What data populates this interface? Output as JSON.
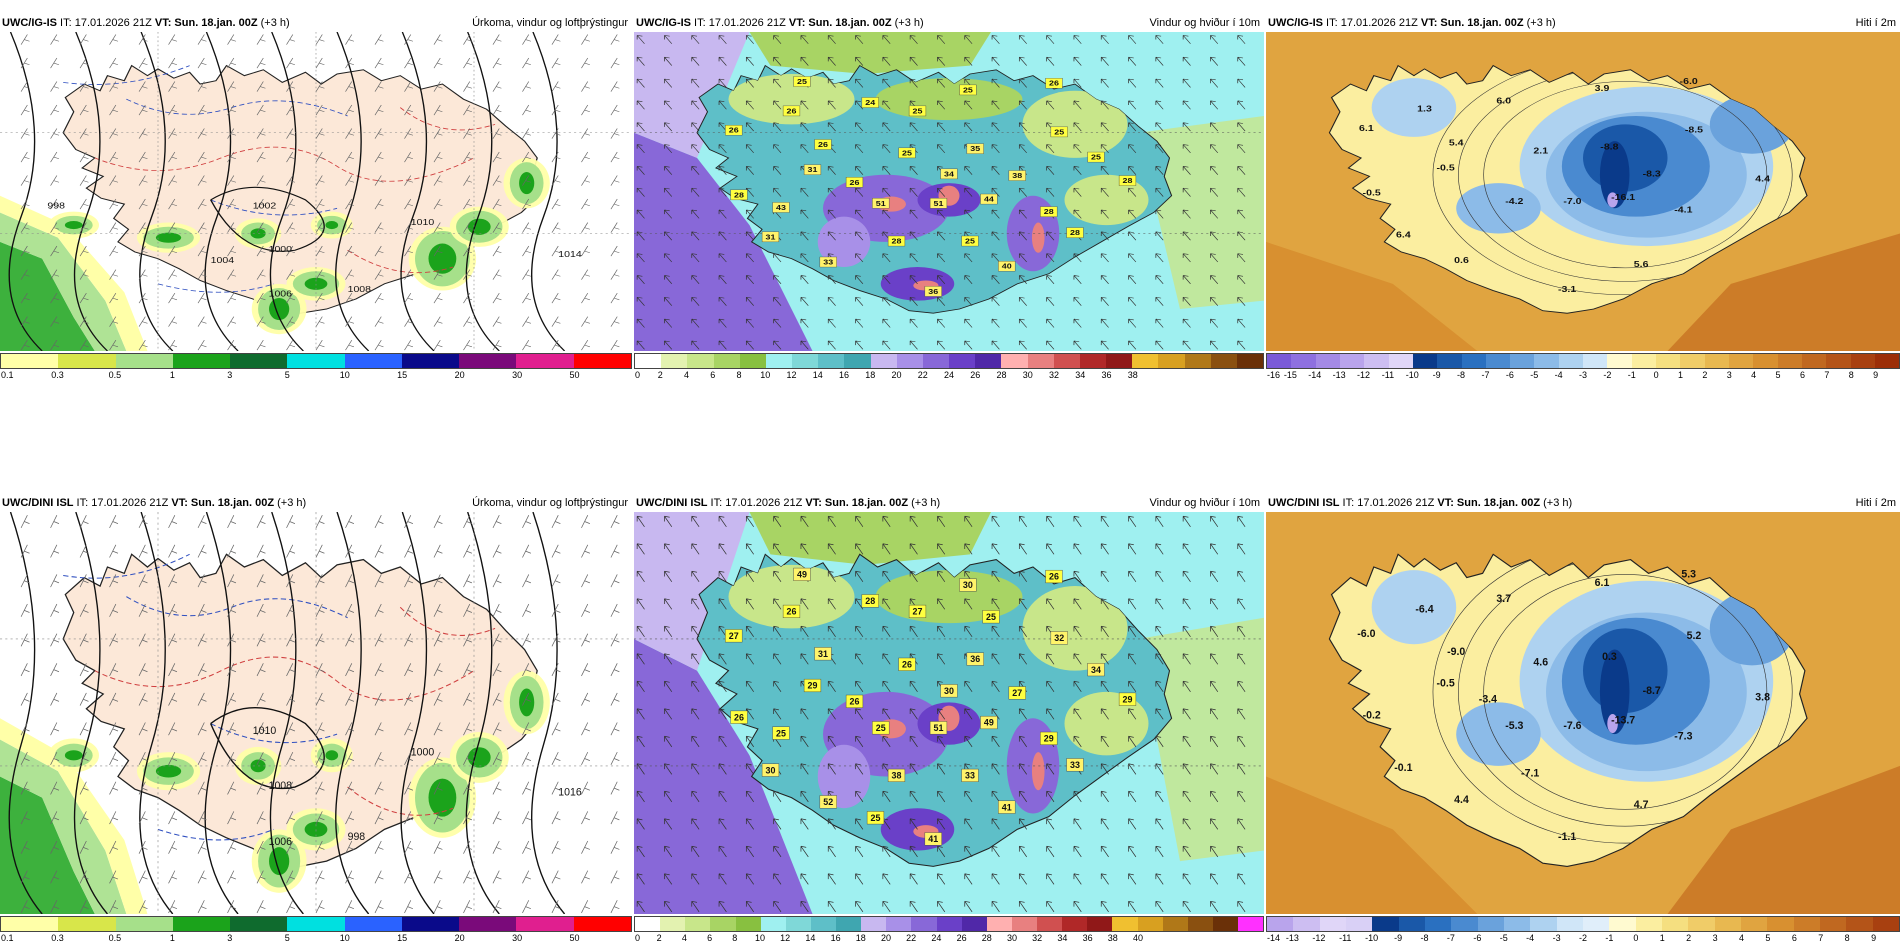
{
  "panels": [
    {
      "id": "p1",
      "model": "UWC/IG-IS",
      "it_label": "IT:",
      "it_value": "17.01.2026 21Z",
      "vt_label": "VT:",
      "vt_value": "Sun. 18.jan. 00Z",
      "lead": "(+3 h)",
      "title": "Úrkoma, vindur og loftþrýstingur",
      "kind": "precip",
      "values": [
        "1002",
        "1000",
        "1006",
        "1010",
        "1008",
        "1014",
        "998",
        "1004"
      ],
      "legend": {
        "colors": [
          "#ffffa8",
          "#d8e64a",
          "#a6e08a",
          "#1ba31b",
          "#0f6b2e",
          "#00e0e0",
          "#2a62ff",
          "#0a0a8a",
          "#7a0a7a",
          "#e01f8f",
          "#ff0000"
        ],
        "ticks": [
          "0.1",
          "0.3",
          "0.5",
          "1",
          "3",
          "5",
          "10",
          "15",
          "20",
          "30",
          "50"
        ]
      }
    },
    {
      "id": "p2",
      "model": "UWC/IG-IS",
      "it_label": "IT:",
      "it_value": "17.01.2026 21Z",
      "vt_label": "VT:",
      "vt_value": "Sun. 18.jan. 00Z",
      "lead": "(+3 h)",
      "title": "Vindur og hviður í 10m",
      "kind": "wind",
      "values": [
        "25",
        "26",
        "26",
        "24",
        "26",
        "26",
        "25",
        "35",
        "25",
        "31",
        "38",
        "28",
        "28",
        "51",
        "51",
        "44",
        "28",
        "31",
        "33",
        "40",
        "36",
        "28",
        "26",
        "34",
        "25",
        "43",
        "25",
        "25",
        "28",
        "25"
      ],
      "legend": {
        "colors": [
          "#ffffff",
          "#e3f2b0",
          "#c8e68a",
          "#a8d464",
          "#88c040",
          "#9ff0f0",
          "#7fd8d8",
          "#5ebfc8",
          "#3fa6b0",
          "#c8b8f0",
          "#a890e8",
          "#8868d8",
          "#6a40c8",
          "#5028a8",
          "#ffb0b0",
          "#e88080",
          "#d05050",
          "#b02828",
          "#901818",
          "#f0c030",
          "#d8a020",
          "#b07818",
          "#8a5010",
          "#6a3008"
        ],
        "ticks": [
          "0",
          "2",
          "4",
          "6",
          "8",
          "10",
          "12",
          "14",
          "16",
          "18",
          "20",
          "22",
          "24",
          "26",
          "28",
          "30",
          "32",
          "34",
          "36",
          "38"
        ]
      }
    },
    {
      "id": "p3",
      "model": "UWC/IG-IS",
      "it_label": "IT:",
      "it_value": "17.01.2026 21Z",
      "vt_label": "VT:",
      "vt_value": "Sun. 18.jan. 00Z",
      "lead": "(+3 h)",
      "title": "Hiti í 2m",
      "kind": "temp",
      "values": [
        "3.9",
        "-6.0",
        "1.3",
        "6.0",
        "6.1",
        "5.4",
        "2.1",
        "-8.8",
        "-8.5",
        "-0.5",
        "-8.3",
        "4.4",
        "-0.5",
        "-4.2",
        "-7.0",
        "-16.1",
        "-4.1",
        "6.4",
        "0.6",
        "5.6",
        "-3.1"
      ],
      "legend": {
        "colors": [
          "#7a5ad8",
          "#8e70e0",
          "#a48ae6",
          "#b9a4ec",
          "#cdbef2",
          "#e0d6f8",
          "#0a3a8a",
          "#1a58a8",
          "#2a70c0",
          "#4a8ad0",
          "#6aa2dc",
          "#8cbbe8",
          "#aed2f0",
          "#d0e6f8",
          "#fffad0",
          "#fbeea0",
          "#f5df80",
          "#f0cc68",
          "#e8b850",
          "#e0a440",
          "#d89030",
          "#cc7c28",
          "#c06820",
          "#b45418",
          "#a84010",
          "#9c2e08"
        ],
        "ticks": [
          "-16",
          "-15",
          "-14",
          "-13",
          "-12",
          "-11",
          "-10",
          "-9",
          "-8",
          "-7",
          "-6",
          "-5",
          "-4",
          "-3",
          "-2",
          "-1",
          "0",
          "1",
          "2",
          "3",
          "4",
          "5",
          "6",
          "7",
          "8",
          "9"
        ]
      }
    },
    {
      "id": "p4",
      "model": "UWC/DINI ISL",
      "it_label": "IT:",
      "it_value": "17.01.2026 21Z",
      "vt_label": "VT:",
      "vt_value": "Sun. 18.jan. 00Z",
      "lead": "(+3 h)",
      "title": "Úrkoma, vindur og loftþrýstingur",
      "kind": "precip",
      "values": [
        "1010",
        "1008",
        "1006",
        "1000",
        "998",
        "1016"
      ],
      "legend": {
        "colors": [
          "#ffffa8",
          "#d8e64a",
          "#a6e08a",
          "#1ba31b",
          "#0f6b2e",
          "#00e0e0",
          "#2a62ff",
          "#0a0a8a",
          "#7a0a7a",
          "#e01f8f",
          "#ff0000"
        ],
        "ticks": [
          "0.1",
          "0.3",
          "0.5",
          "1",
          "3",
          "5",
          "10",
          "15",
          "20",
          "30",
          "50"
        ]
      }
    },
    {
      "id": "p5",
      "model": "UWC/DINI ISL",
      "it_label": "IT:",
      "it_value": "17.01.2026 21Z",
      "vt_label": "VT:",
      "vt_value": "Sun. 18.jan. 00Z",
      "lead": "(+3 h)",
      "title": "Vindur og hviður í 10m",
      "kind": "wind",
      "values": [
        "30",
        "26",
        "26",
        "28",
        "27",
        "31",
        "26",
        "36",
        "32",
        "29",
        "27",
        "29",
        "26",
        "25",
        "51",
        "49",
        "29",
        "30",
        "52",
        "41",
        "41",
        "38",
        "26",
        "30",
        "34",
        "25",
        "33",
        "27",
        "33",
        "49",
        "25",
        "25"
      ],
      "legend": {
        "colors": [
          "#ffffff",
          "#e3f2b0",
          "#c8e68a",
          "#a8d464",
          "#88c040",
          "#9ff0f0",
          "#7fd8d8",
          "#5ebfc8",
          "#3fa6b0",
          "#c8b8f0",
          "#a890e8",
          "#8868d8",
          "#6a40c8",
          "#5028a8",
          "#ffb0b0",
          "#e88080",
          "#d05050",
          "#b02828",
          "#901818",
          "#f0c030",
          "#d8a020",
          "#b07818",
          "#8a5010",
          "#6a3008",
          "#ff30ff"
        ],
        "ticks": [
          "0",
          "2",
          "4",
          "6",
          "8",
          "10",
          "12",
          "14",
          "16",
          "18",
          "20",
          "22",
          "24",
          "26",
          "28",
          "30",
          "32",
          "34",
          "36",
          "38",
          "40"
        ]
      }
    },
    {
      "id": "p6",
      "model": "UWC/DINI ISL",
      "it_label": "IT:",
      "it_value": "17.01.2026 21Z",
      "vt_label": "VT:",
      "vt_value": "Sun. 18.jan. 00Z",
      "lead": "(+3 h)",
      "title": "Hiti í 2m",
      "kind": "temp",
      "values": [
        "6.1",
        "5.3",
        "-6.4",
        "3.7",
        "-6.0",
        "-9.0",
        "4.6",
        "0.3",
        "5.2",
        "-0.5",
        "-8.7",
        "3.8",
        "-0.2",
        "-5.3",
        "-7.6",
        "-13.7",
        "-7.3",
        "-0.1",
        "4.4",
        "4.7",
        "-1.1",
        "-7.1",
        "-3.4"
      ],
      "legend": {
        "colors": [
          "#b9a4ec",
          "#cdbef2",
          "#e0d6f8",
          "#d9d0f6",
          "#0a3a8a",
          "#1a58a8",
          "#2a70c0",
          "#4a8ad0",
          "#6aa2dc",
          "#8cbbe8",
          "#aed2f0",
          "#d0e6f8",
          "#e0eefa",
          "#fffad0",
          "#fbeea0",
          "#f5df80",
          "#f0cc68",
          "#e8b850",
          "#e0a440",
          "#d89030",
          "#cc7c28",
          "#c06820",
          "#b45418",
          "#a84010"
        ],
        "ticks": [
          "-14",
          "-13",
          "-12",
          "-11",
          "-10",
          "-9",
          "-8",
          "-7",
          "-6",
          "-5",
          "-4",
          "-3",
          "-2",
          "-1",
          "0",
          "1",
          "2",
          "3",
          "4",
          "5",
          "6",
          "7",
          "8",
          "9"
        ]
      }
    }
  ]
}
